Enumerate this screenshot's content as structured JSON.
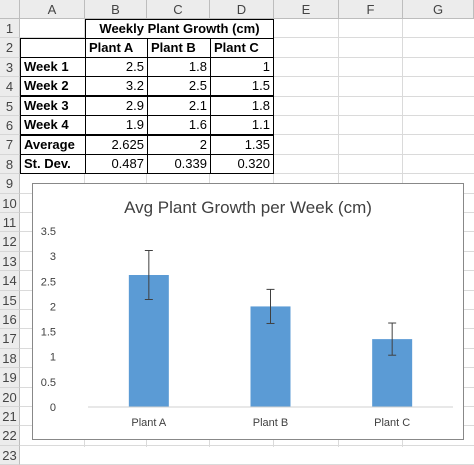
{
  "columns": [
    "A",
    "B",
    "C",
    "D",
    "E",
    "F",
    "G"
  ],
  "rows": [
    "1",
    "2",
    "3",
    "4",
    "5",
    "6",
    "7",
    "8",
    "9",
    "10",
    "11",
    "12",
    "13",
    "14",
    "15",
    "16",
    "17",
    "18",
    "19",
    "20",
    "21",
    "22",
    "23"
  ],
  "table": {
    "title": "Weekly Plant Growth (cm)",
    "headers": [
      "Plant A",
      "Plant B",
      "Plant C"
    ],
    "body": [
      {
        "label": "Week 1",
        "values": [
          "2.5",
          "1.8",
          "1"
        ]
      },
      {
        "label": "Week 2",
        "values": [
          "3.2",
          "2.5",
          "1.5"
        ]
      },
      {
        "label": "Week 3",
        "values": [
          "2.9",
          "2.1",
          "1.8"
        ]
      },
      {
        "label": "Week 4",
        "values": [
          "1.9",
          "1.6",
          "1.1"
        ]
      },
      {
        "label": "Average",
        "values": [
          "2.625",
          "2",
          "1.35"
        ]
      },
      {
        "label": "St. Dev.",
        "values": [
          "0.487",
          "0.339",
          "0.320"
        ]
      }
    ]
  },
  "chart_data": {
    "type": "bar",
    "title": "Avg Plant Growth per Week (cm)",
    "categories": [
      "Plant A",
      "Plant B",
      "Plant C"
    ],
    "values": [
      2.625,
      2,
      1.35
    ],
    "error": [
      0.487,
      0.339,
      0.32
    ],
    "ylim": [
      0,
      3.5
    ],
    "yticks": [
      "0",
      "0.5",
      "1",
      "1.5",
      "2",
      "2.5",
      "3",
      "3.5"
    ],
    "color": "#5b9bd5",
    "grid": false,
    "legend": "none"
  }
}
